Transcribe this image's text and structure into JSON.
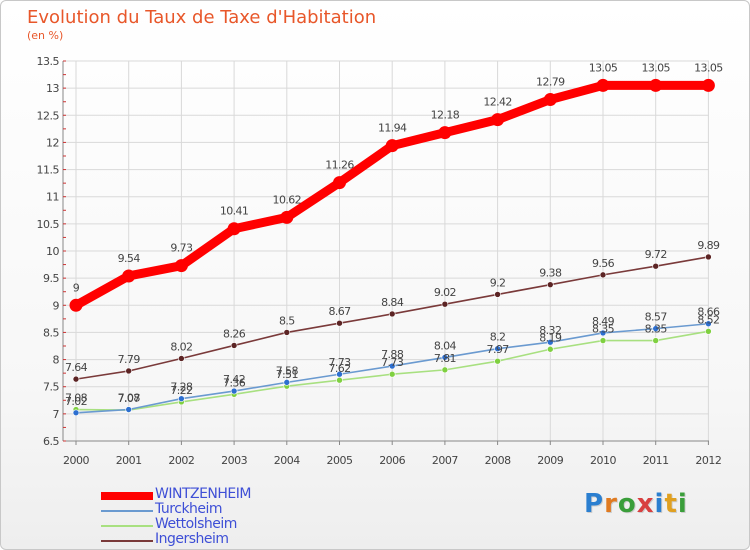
{
  "chart_data": {
    "type": "line",
    "title": "Evolution du Taux de Taxe d'Habitation",
    "subtitle": "(en %)",
    "x": [
      "2000",
      "2001",
      "2002",
      "2003",
      "2004",
      "2005",
      "2006",
      "2007",
      "2008",
      "2009",
      "2010",
      "2011",
      "2012"
    ],
    "ylim": [
      6.5,
      13.5
    ],
    "yticks": [
      "6.5",
      "7",
      "7.5",
      "8",
      "8.5",
      "9",
      "9.5",
      "10",
      "10.5",
      "11",
      "11.5",
      "12",
      "12.5",
      "13",
      "13.5"
    ],
    "grid": true,
    "legend_position": "bottom-left",
    "series": [
      {
        "name": "WINTZENHEIM",
        "color": "#ff0000",
        "values": [
          9,
          9.54,
          9.73,
          10.41,
          10.62,
          11.26,
          11.94,
          12.18,
          12.42,
          12.79,
          13.05,
          13.05,
          13.05
        ],
        "labels": [
          "9",
          "9.54",
          "9.73",
          "10.41",
          "10.62",
          "11.26",
          "11.94",
          "12.18",
          "12.42",
          "12.79",
          "13.05",
          "13.05",
          "13.05"
        ]
      },
      {
        "name": "Turckheim",
        "color": "#6a9ad0",
        "marker": "#2d6fd0",
        "values": [
          7.02,
          7.08,
          7.28,
          7.42,
          7.58,
          7.73,
          7.88,
          8.04,
          8.2,
          8.32,
          8.49,
          8.57,
          8.66
        ],
        "labels": [
          "7.02",
          "7.08",
          "7.28",
          "7.42",
          "7.58",
          "7.73",
          "7.88",
          "8.04",
          "8.2",
          "8.32",
          "8.49",
          "8.57",
          "8.66"
        ]
      },
      {
        "name": "Wettolsheim",
        "color": "#a8e080",
        "marker": "#7fd040",
        "values": [
          7.08,
          7.07,
          7.22,
          7.36,
          7.51,
          7.62,
          7.73,
          7.81,
          7.97,
          8.19,
          8.35,
          8.35,
          8.52
        ],
        "labels": [
          "7.08",
          "7.07",
          "7.22",
          "7.36",
          "7.51",
          "7.62",
          "7.73",
          "7.81",
          "7.97",
          "8.19",
          "8.35",
          "8.35",
          "8.52"
        ]
      },
      {
        "name": "Ingersheim",
        "color": "#7a3a3a",
        "marker": "#5c2424",
        "values": [
          7.64,
          7.79,
          8.02,
          8.26,
          8.5,
          8.67,
          8.84,
          9.02,
          9.2,
          9.38,
          9.56,
          9.72,
          9.89
        ],
        "labels": [
          "7.64",
          "7.79",
          "8.02",
          "8.26",
          "8.5",
          "8.67",
          "8.84",
          "9.02",
          "9.2",
          "9.38",
          "9.56",
          "9.72",
          "9.89"
        ]
      }
    ]
  },
  "brand": {
    "letters": [
      "P",
      "r",
      "o",
      "x",
      "i",
      "t",
      "i"
    ],
    "colors": [
      "#2b7fd0",
      "#e07a20",
      "#3a9e3a",
      "#d84040",
      "#2b7fd0",
      "#e0a020",
      "#3a9e3a"
    ]
  }
}
